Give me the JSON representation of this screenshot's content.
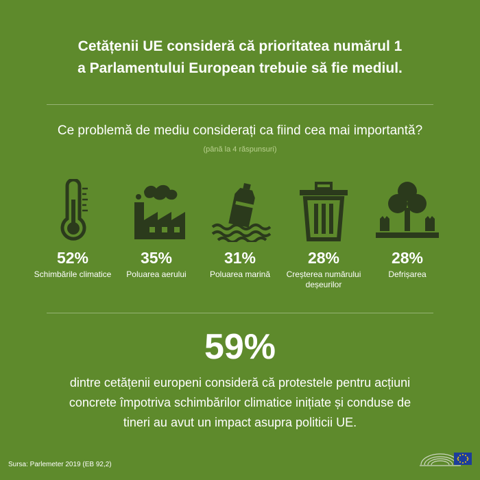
{
  "title": {
    "line1": "Cetățenii UE consideră că prioritatea numărul 1",
    "line2": "a Parlamentului European trebuie să fie mediul."
  },
  "question": "Ce problemă de mediu considerați ca fiind cea mai importantă?",
  "hint": "(până la 4 răspunsuri)",
  "items": [
    {
      "icon": "thermometer-icon",
      "percent": "52%",
      "label": "Schimbările climatice",
      "value": 52
    },
    {
      "icon": "factory-pollution-icon",
      "percent": "35%",
      "label": "Poluarea aerului",
      "value": 35
    },
    {
      "icon": "marine-pollution-icon",
      "percent": "31%",
      "label": "Poluarea marină",
      "value": 31
    },
    {
      "icon": "trash-bin-icon",
      "percent": "28%",
      "label": "Creșterea numărului deșeurilor",
      "value": 28
    },
    {
      "icon": "deforestation-icon",
      "percent": "28%",
      "label": "Defrișarea",
      "value": 28
    }
  ],
  "highlight": {
    "percent": "59%",
    "line1": "dintre cetățenii europeni consideră că protestele pentru acțiuni",
    "line2": "concrete împotriva schimbărilor climatice inițiate și conduse de",
    "line3": "tineri au avut un impact asupra politicii UE."
  },
  "source": "Sursa: Parlemeter 2019 (EB 92,2)",
  "colors": {
    "background": "#5e8a2c",
    "icon_dark": "#2b3a1c",
    "text": "#ffffff",
    "hint": "#b9d08f",
    "eu_blue": "#1d3d9a",
    "eu_star": "#ffd200"
  }
}
